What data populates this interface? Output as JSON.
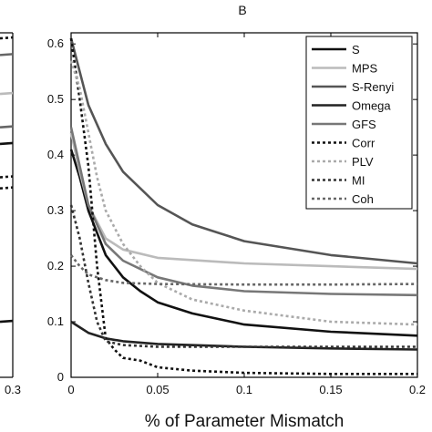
{
  "chart_data": [
    {
      "panel": "left (partial)",
      "type": "line",
      "xlim": [
        0,
        0.3
      ],
      "x_tick_labels": [
        "0.3"
      ],
      "series": [
        {
          "style": "black-solid",
          "values": [
            0.42
          ]
        },
        {
          "style": "lightgray-solid",
          "values": [
            0.51
          ]
        },
        {
          "style": "darkgray-solid-1",
          "values": [
            0.58
          ]
        },
        {
          "style": "darkgray-solid-2",
          "values": [
            0.45
          ]
        },
        {
          "style": "black-solid-low",
          "values": [
            0.1
          ]
        },
        {
          "style": "dotted-1",
          "values": [
            0.61
          ]
        },
        {
          "style": "dotted-2",
          "values": [
            0.36
          ]
        },
        {
          "style": "dotted-3",
          "values": [
            0.34
          ]
        }
      ]
    },
    {
      "panel": "B",
      "type": "line",
      "title": "B",
      "xlabel": "% of Parameter Mismatch",
      "ylabel": "",
      "xlim": [
        0,
        0.2
      ],
      "ylim": [
        0,
        0.62
      ],
      "x_ticks": [
        0,
        0.05,
        0.1,
        0.15,
        0.2
      ],
      "x_tick_labels": [
        "0",
        "0.05",
        "0.1",
        "0.15",
        "0.2"
      ],
      "y_ticks": [
        0,
        0.1,
        0.2,
        0.3,
        0.4,
        0.5,
        0.6
      ],
      "y_tick_labels": [
        "0",
        "0.1",
        "0.2",
        "0.3",
        "0.4",
        "0.5",
        "0.6"
      ],
      "grid": false,
      "legend_position": "top-right",
      "series": [
        {
          "name": "S",
          "color": "#111111",
          "dash": "solid",
          "x": [
            0,
            0.005,
            0.01,
            0.015,
            0.02,
            0.03,
            0.04,
            0.05,
            0.07,
            0.1,
            0.15,
            0.2
          ],
          "y": [
            0.41,
            0.36,
            0.3,
            0.26,
            0.22,
            0.18,
            0.155,
            0.135,
            0.115,
            0.095,
            0.082,
            0.075
          ]
        },
        {
          "name": "MPS",
          "color": "#bbbbbb",
          "dash": "solid",
          "x": [
            0,
            0.005,
            0.01,
            0.02,
            0.03,
            0.05,
            0.1,
            0.15,
            0.2
          ],
          "y": [
            0.44,
            0.37,
            0.31,
            0.25,
            0.23,
            0.215,
            0.205,
            0.2,
            0.195
          ]
        },
        {
          "name": "S-Renyi",
          "color": "#555555",
          "dash": "solid",
          "x": [
            0,
            0.005,
            0.01,
            0.02,
            0.03,
            0.05,
            0.07,
            0.1,
            0.15,
            0.2
          ],
          "y": [
            0.61,
            0.55,
            0.49,
            0.42,
            0.37,
            0.31,
            0.275,
            0.245,
            0.22,
            0.205
          ]
        },
        {
          "name": "Omega",
          "color": "#222222",
          "dash": "solid",
          "x": [
            0,
            0.005,
            0.01,
            0.02,
            0.03,
            0.05,
            0.1,
            0.15,
            0.2
          ],
          "y": [
            0.1,
            0.09,
            0.08,
            0.07,
            0.065,
            0.06,
            0.055,
            0.052,
            0.05
          ]
        },
        {
          "name": "GFS",
          "color": "#777777",
          "dash": "solid",
          "x": [
            0,
            0.005,
            0.01,
            0.02,
            0.03,
            0.05,
            0.07,
            0.1,
            0.15,
            0.2
          ],
          "y": [
            0.45,
            0.38,
            0.31,
            0.24,
            0.21,
            0.18,
            0.165,
            0.155,
            0.15,
            0.148
          ]
        },
        {
          "name": "Corr",
          "color": "#111111",
          "dash": "3,3",
          "x": [
            0,
            0.005,
            0.01,
            0.015,
            0.02,
            0.025,
            0.03,
            0.04,
            0.05,
            0.07,
            0.1,
            0.15,
            0.2
          ],
          "y": [
            0.61,
            0.5,
            0.38,
            0.2,
            0.07,
            0.05,
            0.035,
            0.03,
            0.018,
            0.012,
            0.008,
            0.006,
            0.006
          ]
        },
        {
          "name": "PLV",
          "color": "#aaaaaa",
          "dash": "3,3",
          "x": [
            0,
            0.005,
            0.01,
            0.015,
            0.02,
            0.03,
            0.04,
            0.05,
            0.07,
            0.1,
            0.15,
            0.2
          ],
          "y": [
            0.57,
            0.52,
            0.44,
            0.36,
            0.3,
            0.24,
            0.2,
            0.17,
            0.14,
            0.12,
            0.1,
            0.095
          ]
        },
        {
          "name": "MI",
          "color": "#333333",
          "dash": "3,3",
          "x": [
            0,
            0.005,
            0.01,
            0.015,
            0.02,
            0.03,
            0.05,
            0.1,
            0.15,
            0.2
          ],
          "y": [
            0.31,
            0.25,
            0.17,
            0.1,
            0.065,
            0.058,
            0.055,
            0.055,
            0.055,
            0.055
          ]
        },
        {
          "name": "Coh",
          "color": "#666666",
          "dash": "3,3",
          "x": [
            0,
            0.005,
            0.01,
            0.02,
            0.03,
            0.05,
            0.1,
            0.15,
            0.2
          ],
          "y": [
            0.22,
            0.2,
            0.185,
            0.175,
            0.17,
            0.168,
            0.167,
            0.167,
            0.168
          ]
        }
      ]
    }
  ]
}
